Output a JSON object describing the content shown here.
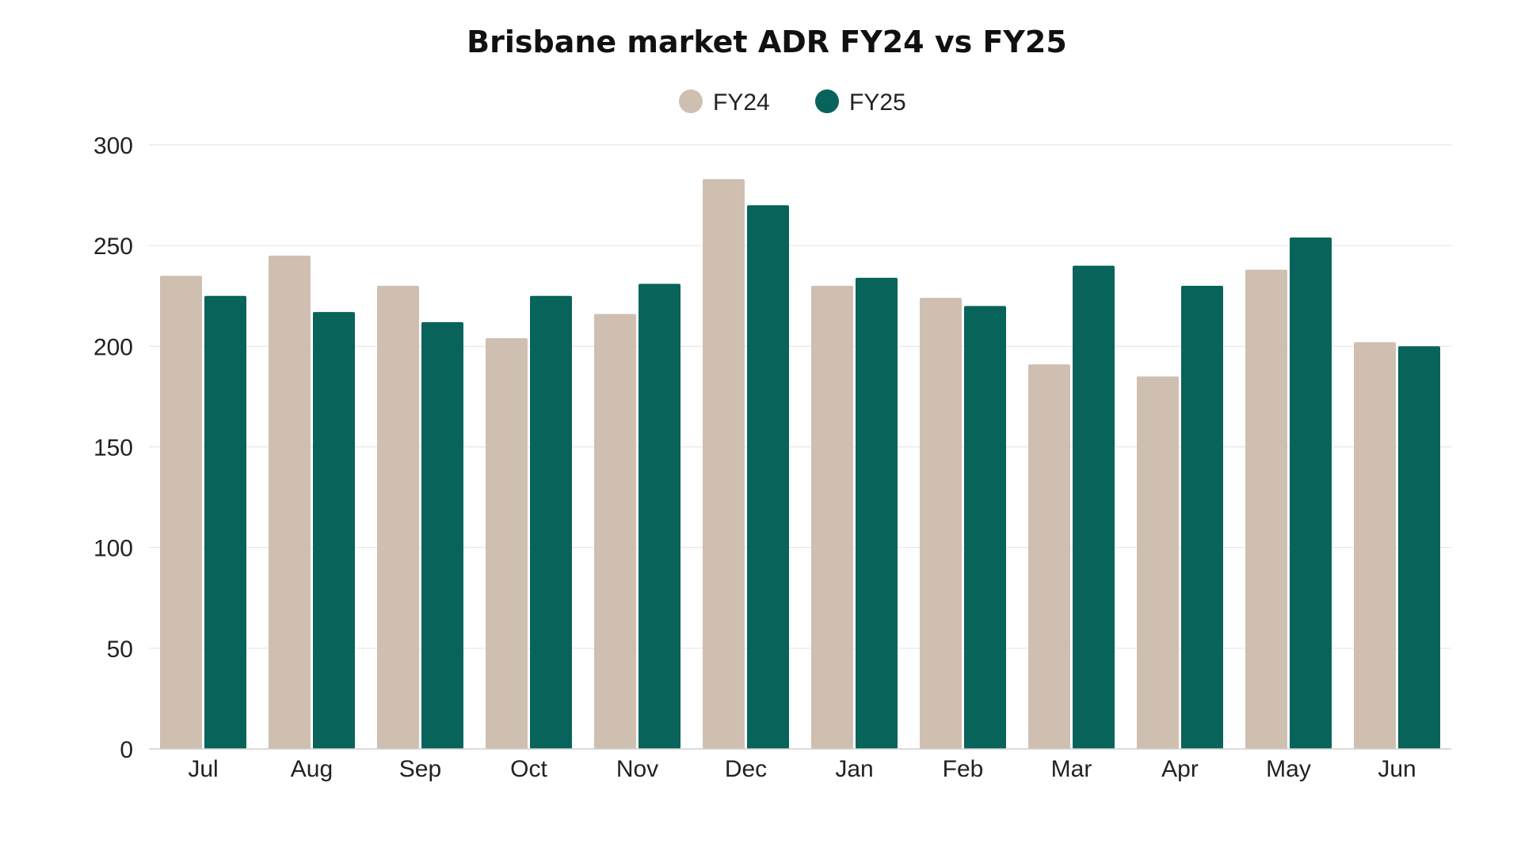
{
  "chart_data": {
    "type": "bar",
    "title": "Brisbane market ADR FY24 vs FY25",
    "xlabel": "",
    "ylabel": "",
    "categories": [
      "Jul",
      "Aug",
      "Sep",
      "Oct",
      "Nov",
      "Dec",
      "Jan",
      "Feb",
      "Mar",
      "Apr",
      "May",
      "Jun"
    ],
    "series": [
      {
        "name": "FY24",
        "color": "#cfbfb1",
        "values": [
          235,
          245,
          230,
          204,
          216,
          283,
          230,
          224,
          191,
          185,
          238,
          202
        ]
      },
      {
        "name": "FY25",
        "color": "#08645a",
        "values": [
          225,
          217,
          212,
          225,
          231,
          270,
          234,
          220,
          240,
          230,
          254,
          200
        ]
      }
    ],
    "ylim": [
      0,
      300
    ],
    "yticks": [
      "0",
      "50",
      "100",
      "150",
      "200",
      "250",
      "300"
    ],
    "grid": true,
    "legend_position": "top-center"
  }
}
